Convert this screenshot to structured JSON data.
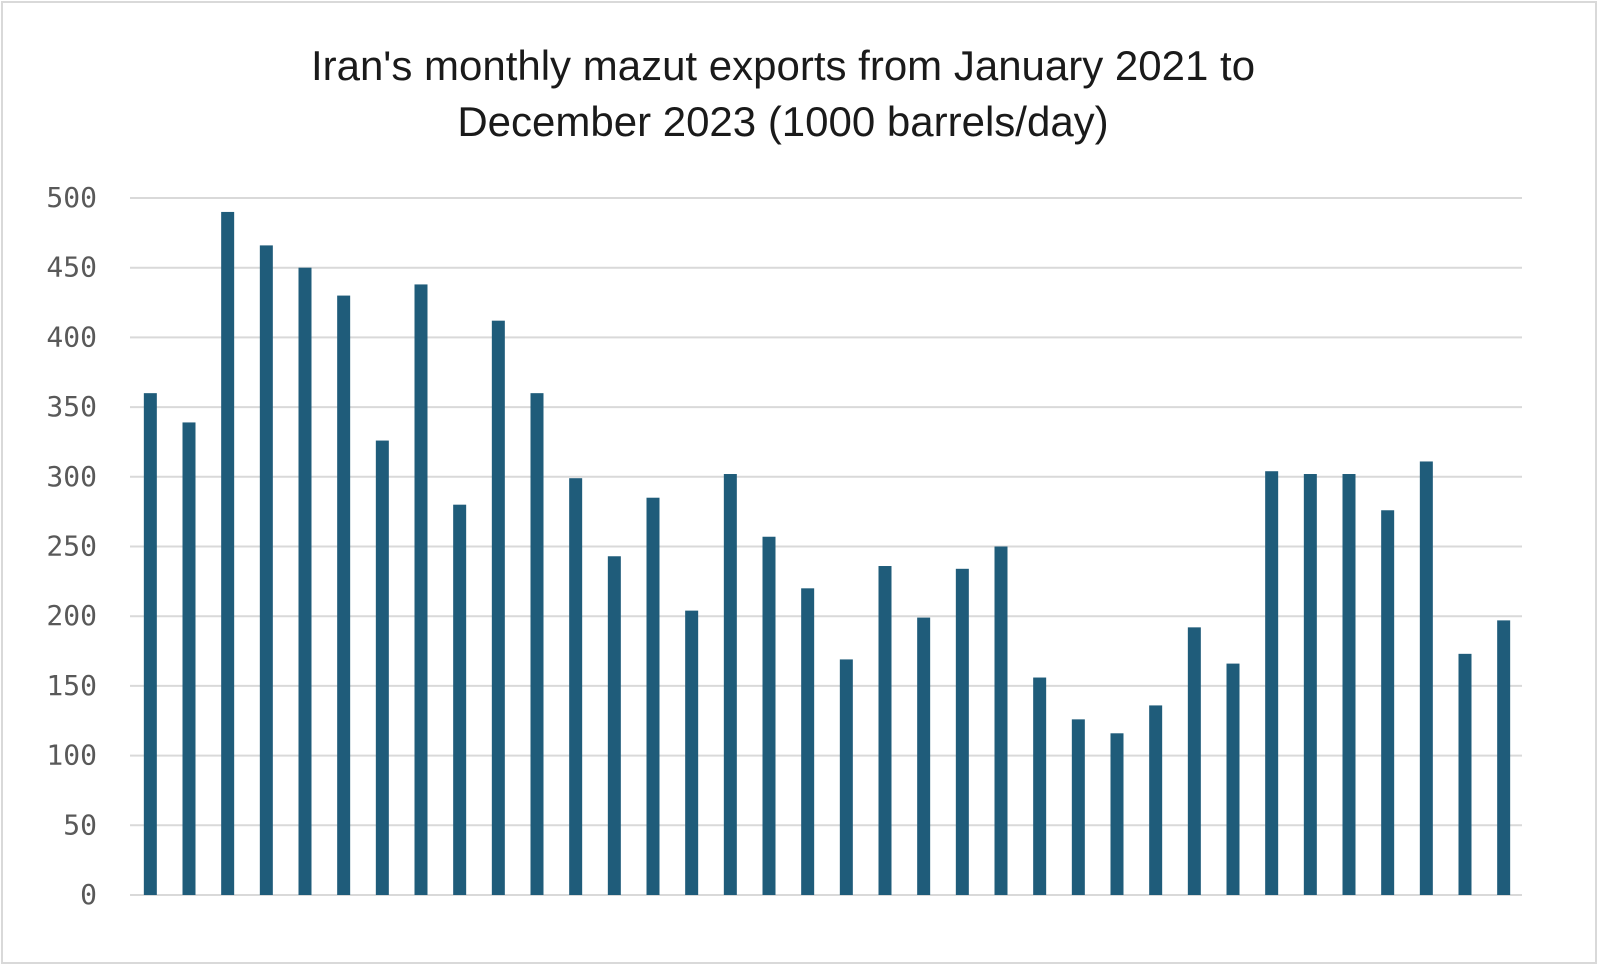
{
  "chart_data": {
    "type": "bar",
    "title_line1": "Iran's monthly mazut exports from January 2021 to",
    "title_line2": "December 2023 (1000 barrels/day)",
    "xlabel": "",
    "ylabel": "",
    "ylim": [
      0,
      500
    ],
    "yticks": [
      "0",
      "50",
      "100",
      "150",
      "200",
      "250",
      "300",
      "350",
      "400",
      "450",
      "500"
    ],
    "grid": true,
    "bar_color": "#1f5c7a",
    "values": [
      360,
      339,
      490,
      466,
      450,
      430,
      326,
      438,
      280,
      412,
      360,
      299,
      243,
      285,
      204,
      302,
      257,
      220,
      169,
      236,
      199,
      234,
      250,
      156,
      126,
      116,
      136,
      192,
      166,
      304,
      302,
      302,
      276,
      311,
      173,
      197
    ]
  }
}
